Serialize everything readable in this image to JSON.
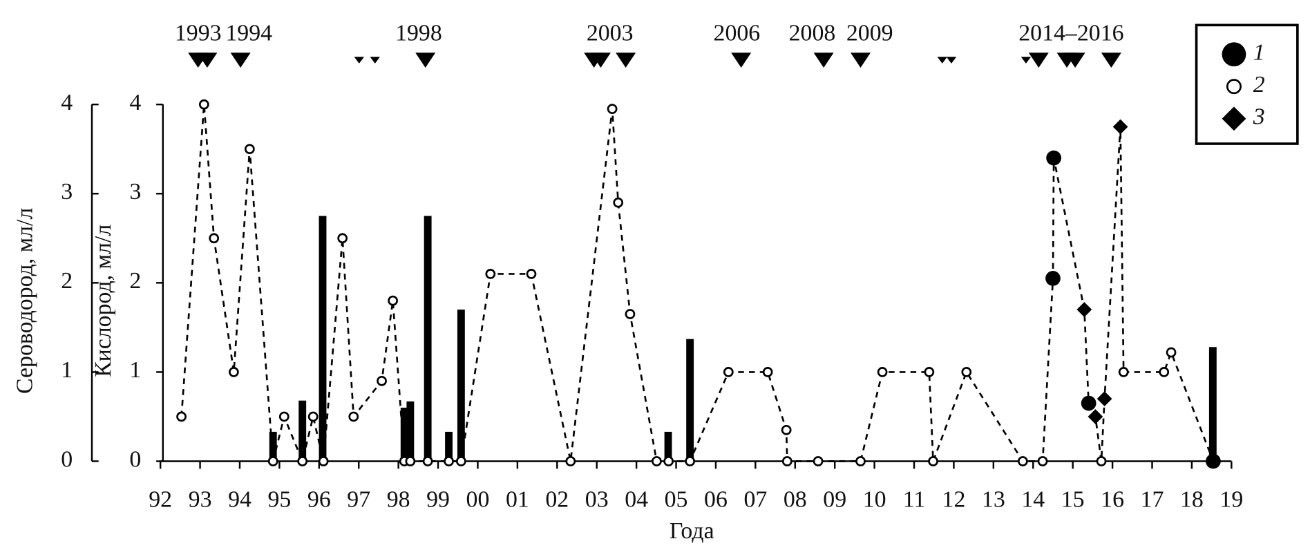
{
  "chart_data": {
    "type": "line",
    "xlabel": "Года",
    "ylabel": "Сероводород, мл/л",
    "y2label": "Кислород, мл/л",
    "xlim": [
      1992,
      2019
    ],
    "xticks": [
      {
        "value": 1992,
        "label": "92"
      },
      {
        "value": 1993,
        "label": "93"
      },
      {
        "value": 1994,
        "label": "94"
      },
      {
        "value": 1995,
        "label": "95"
      },
      {
        "value": 1996,
        "label": "96"
      },
      {
        "value": 1997,
        "label": "97"
      },
      {
        "value": 1998,
        "label": "98"
      },
      {
        "value": 1999,
        "label": "99"
      },
      {
        "value": 2000,
        "label": "00"
      },
      {
        "value": 2001,
        "label": "01"
      },
      {
        "value": 2002,
        "label": "02"
      },
      {
        "value": 2003,
        "label": "03"
      },
      {
        "value": 2004,
        "label": "04"
      },
      {
        "value": 2005,
        "label": "05"
      },
      {
        "value": 2006,
        "label": "06"
      },
      {
        "value": 2007,
        "label": "07"
      },
      {
        "value": 2008,
        "label": "08"
      },
      {
        "value": 2009,
        "label": "09"
      },
      {
        "value": 2010,
        "label": "10"
      },
      {
        "value": 2011,
        "label": "11"
      },
      {
        "value": 2012,
        "label": "12"
      },
      {
        "value": 2013,
        "label": "13"
      },
      {
        "value": 2014,
        "label": "14"
      },
      {
        "value": 2015,
        "label": "15"
      },
      {
        "value": 2016,
        "label": "16"
      },
      {
        "value": 2017,
        "label": "17"
      },
      {
        "value": 2018,
        "label": "18"
      },
      {
        "value": 2019,
        "label": "19"
      }
    ],
    "ylim": [
      0,
      4
    ],
    "yticks": [
      0,
      1,
      2,
      3,
      4
    ],
    "y2lim": [
      0,
      4
    ],
    "y2ticks": [
      0,
      1,
      2,
      3,
      4
    ],
    "bars": {
      "color": "#000000",
      "x": [
        1994.84,
        1995.58,
        1996.09,
        1998.15,
        1998.3,
        1998.74,
        1999.27,
        1999.58,
        2004.8,
        2005.35,
        2018.53
      ],
      "values": [
        0.33,
        0.68,
        2.75,
        0.6,
        0.67,
        2.75,
        0.33,
        1.7,
        0.33,
        1.37,
        1.28
      ]
    },
    "line": {
      "axis": "y2",
      "style": "dashed",
      "color": "#000000",
      "x": [
        1992.53,
        1993.1,
        1993.35,
        1993.85,
        1994.25,
        1994.84,
        1995.12,
        1995.58,
        1995.85,
        1996.11,
        1996.59,
        1996.87,
        1997.58,
        1997.86,
        1998.15,
        1998.3,
        1998.74,
        1999.27,
        1999.58,
        2000.32,
        2001.35,
        2002.34,
        2003.39,
        2003.54,
        2003.84,
        2004.51,
        2004.81,
        2005.35,
        2006.32,
        2007.31,
        2007.78,
        2007.8,
        2008.58,
        2009.65,
        2010.2,
        2011.38,
        2011.48,
        2012.32,
        2013.74,
        2014.24,
        2014.5,
        2014.52,
        2015.29,
        2015.4,
        2015.57,
        2015.72,
        2015.8,
        2016.2,
        2016.28,
        2017.3,
        2017.48,
        2018.54
      ],
      "values": [
        0.5,
        4,
        2.5,
        1,
        3.5,
        0,
        0.5,
        0,
        0.5,
        0,
        2.5,
        0.5,
        0.9,
        1.8,
        0,
        0,
        0,
        0,
        0,
        2.1,
        2.1,
        0,
        3.95,
        2.9,
        1.65,
        0,
        0,
        0,
        1,
        1,
        0.35,
        0,
        0,
        0,
        1,
        1,
        0,
        1,
        0,
        0,
        2.05,
        3.4,
        1.7,
        0.65,
        0.5,
        0,
        0.7,
        3.75,
        1,
        1,
        1.22,
        0
      ]
    },
    "series": [
      {
        "name": "1",
        "marker": "filled-circle",
        "color": "#000000",
        "axis": "y2",
        "x": [
          2014.5,
          2014.52,
          2015.4,
          2018.54
        ],
        "values": [
          2.05,
          3.4,
          0.65,
          0
        ]
      },
      {
        "name": "2",
        "marker": "open-circle",
        "color": "#000000",
        "axis": "y2",
        "x": [
          1992.53,
          1993.1,
          1993.35,
          1993.85,
          1994.25,
          1994.84,
          1995.12,
          1995.58,
          1995.85,
          1996.11,
          1996.59,
          1996.87,
          1997.58,
          1997.86,
          1998.15,
          1998.3,
          1998.74,
          1999.27,
          1999.58,
          2000.32,
          2001.35,
          2002.34,
          2003.39,
          2003.54,
          2003.84,
          2004.51,
          2004.81,
          2005.35,
          2006.32,
          2007.31,
          2007.78,
          2007.8,
          2008.58,
          2009.65,
          2010.2,
          2011.38,
          2011.48,
          2012.32,
          2013.74,
          2014.24,
          2015.72,
          2016.28,
          2017.3,
          2017.48
        ],
        "values": [
          0.5,
          4,
          2.5,
          1,
          3.5,
          0,
          0.5,
          0,
          0.5,
          0,
          2.5,
          0.5,
          0.9,
          1.8,
          0,
          0,
          0,
          0,
          0,
          2.1,
          2.1,
          0,
          3.95,
          2.9,
          1.65,
          0,
          0,
          0,
          1,
          1,
          0.35,
          0,
          0,
          0,
          1,
          1,
          0,
          1,
          0,
          0,
          0,
          1,
          1,
          1.22
        ]
      },
      {
        "name": "3",
        "marker": "diamond",
        "color": "#000000",
        "axis": "y2",
        "x": [
          2015.29,
          2015.57,
          2015.8,
          2016.2
        ],
        "values": [
          1.7,
          0.5,
          0.7,
          3.75
        ]
      }
    ],
    "events": {
      "color": "#000000",
      "x": [
        1992.95,
        1993.18,
        1994.02,
        1997.01,
        1997.41,
        1998.68,
        2002.93,
        2003.1,
        2003.73,
        2006.64,
        2008.72,
        2009.65,
        2011.71,
        2011.94,
        2013.82,
        2014.14,
        2014.85,
        2015.06,
        2015.97
      ],
      "sizes": [
        "large",
        "large",
        "large",
        "small",
        "small",
        "large",
        "large",
        "large",
        "large",
        "large",
        "large",
        "large",
        "small",
        "small",
        "small",
        "large",
        "large",
        "large",
        "large"
      ]
    },
    "event_labels": [
      {
        "text": "1993",
        "x": 1992.95
      },
      {
        "text": "1994",
        "x": 1994.23
      },
      {
        "text": "1998",
        "x": 1998.51
      },
      {
        "text": "2003",
        "x": 2003.33
      },
      {
        "text": "2006",
        "x": 2006.53
      },
      {
        "text": "2008",
        "x": 2008.43
      },
      {
        "text": "2009",
        "x": 2009.88
      },
      {
        "text": "2014–2016",
        "x": 2014.96
      }
    ],
    "legend": "top-right"
  }
}
